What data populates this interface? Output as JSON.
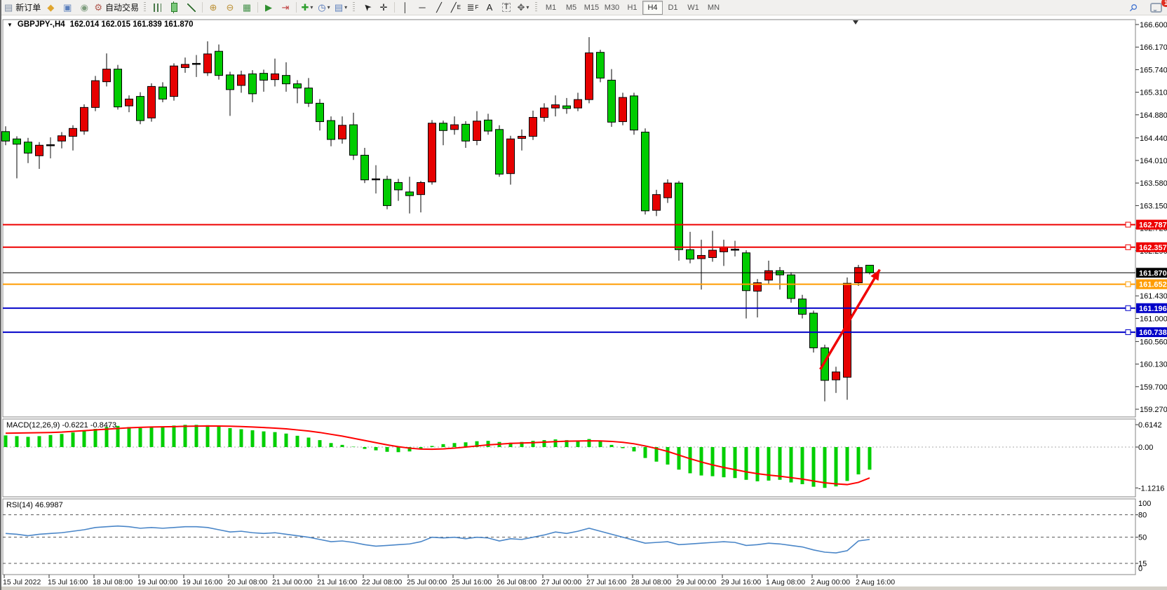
{
  "toolbar": {
    "new_order_label": "新订单",
    "auto_trading_label": "自动交易",
    "items": [
      {
        "t": "btn",
        "name": "new-order-button",
        "glyph": "▤",
        "color": "#7d8ca3",
        "label": "新订单"
      },
      {
        "t": "btn",
        "name": "market-watch-icon",
        "glyph": "◆",
        "color": "#dfa52f"
      },
      {
        "t": "btn",
        "name": "data-window-icon",
        "glyph": "▣",
        "color": "#5b7fbc"
      },
      {
        "t": "btn",
        "name": "signal-icon",
        "glyph": "◉",
        "color": "#7d9c7d"
      },
      {
        "t": "btn",
        "name": "auto-trading-button",
        "glyph": "⚙",
        "color": "#b05a50",
        "label": "自动交易"
      },
      {
        "t": "grip"
      },
      {
        "t": "btn",
        "name": "bar-chart-button",
        "cls": "icon-bars"
      },
      {
        "t": "btn",
        "name": "candlestick-chart-button",
        "cls": "icon-candle"
      },
      {
        "t": "btn",
        "name": "line-chart-button",
        "cls": "icon-linechart"
      },
      {
        "t": "sep"
      },
      {
        "t": "btn",
        "name": "zoom-in-button",
        "glyph": "⊕",
        "color": "#bb8f33"
      },
      {
        "t": "btn",
        "name": "zoom-out-button",
        "glyph": "⊖",
        "color": "#bb8f33"
      },
      {
        "t": "btn",
        "name": "tile-windows-button",
        "glyph": "▦",
        "color": "#47934d"
      },
      {
        "t": "sep"
      },
      {
        "t": "btn",
        "name": "auto-scroll-button",
        "glyph": "▶",
        "color": "#2f8f2f"
      },
      {
        "t": "btn",
        "name": "chart-shift-button",
        "glyph": "⇥",
        "color": "#c04040"
      },
      {
        "t": "sep"
      },
      {
        "t": "btn",
        "name": "indicators-button",
        "glyph": "✚",
        "color": "#2f9f2f",
        "caret": true
      },
      {
        "t": "btn",
        "name": "period-button",
        "glyph": "◷",
        "color": "#4a6fb5",
        "caret": true
      },
      {
        "t": "btn",
        "name": "templates-button",
        "glyph": "▤",
        "color": "#5b7fbc",
        "caret": true
      },
      {
        "t": "grip"
      },
      {
        "t": "btn",
        "name": "cursor-button",
        "glyph": "➤",
        "color": "#222",
        "gcls": "rot-ul"
      },
      {
        "t": "btn",
        "name": "crosshair-button",
        "glyph": "✛",
        "color": "#222"
      },
      {
        "t": "sep"
      },
      {
        "t": "btn",
        "name": "vertical-line-button",
        "glyph": "│",
        "color": "#222"
      },
      {
        "t": "btn",
        "name": "horizontal-line-button",
        "glyph": "─",
        "color": "#222"
      },
      {
        "t": "btn",
        "name": "trendline-button",
        "glyph": "╱",
        "color": "#222"
      },
      {
        "t": "btn",
        "name": "equidistant-channel-button",
        "glyph": "╱",
        "color": "#222",
        "sub": "E"
      },
      {
        "t": "btn",
        "name": "fibonacci-button",
        "glyph": "≣",
        "color": "#222",
        "sub": "F"
      },
      {
        "t": "btn",
        "name": "text-button",
        "glyph": "A",
        "color": "#222"
      },
      {
        "t": "btn",
        "name": "text-label-button",
        "glyph": "T",
        "color": "#222",
        "gcls": "boxed"
      },
      {
        "t": "btn",
        "name": "shapes-button",
        "glyph": "✥",
        "color": "#555",
        "caret": true
      },
      {
        "t": "grip"
      }
    ],
    "timeframes": [
      "M1",
      "M5",
      "M15",
      "M30",
      "H1",
      "H4",
      "D1",
      "W1",
      "MN"
    ],
    "active_timeframe": "H4",
    "search_glyph": "⚲",
    "notification_badge": "1"
  },
  "chart": {
    "title_symbol": "GBPJPY-,H4",
    "title_ohlc": "162.014 162.015 161.839 161.870",
    "dropdown_glyph": "▼",
    "price_ticks": [
      "166.600",
      "166.170",
      "165.740",
      "165.310",
      "164.880",
      "164.440",
      "164.010",
      "163.580",
      "163.150",
      "162.720",
      "162.290",
      "161.430",
      "161.000",
      "160.560",
      "160.130",
      "159.700",
      "159.270"
    ],
    "lines": [
      {
        "label": "162.787",
        "color": "#ee0000",
        "width": 2,
        "handle": true
      },
      {
        "label": "162.357",
        "color": "#ee0000",
        "width": 2,
        "handle": true
      },
      {
        "label": "161.870",
        "color": "#000000",
        "width": 1,
        "handle": false
      },
      {
        "label": "161.652",
        "color": "#ff9c00",
        "width": 2,
        "handle": true
      },
      {
        "label": "161.196",
        "color": "#0000c8",
        "width": 2,
        "handle": true
      },
      {
        "label": "160.738",
        "color": "#0000c8",
        "width": 2,
        "handle": true
      }
    ],
    "bull_color": "#e60000",
    "bear_color": "#00cc00",
    "doji_color": "#111111",
    "candles": [
      [
        164.56,
        164.66,
        164.3,
        164.38
      ],
      [
        164.42,
        164.47,
        163.67,
        164.32
      ],
      [
        164.36,
        164.44,
        163.96,
        164.15
      ],
      [
        164.1,
        164.36,
        163.85,
        164.3
      ],
      [
        164.29,
        164.45,
        164.05,
        164.31
      ],
      [
        164.38,
        164.55,
        164.24,
        164.48
      ],
      [
        164.47,
        164.68,
        164.2,
        164.62
      ],
      [
        164.57,
        165.08,
        164.5,
        165.02
      ],
      [
        165.02,
        165.62,
        164.95,
        165.53
      ],
      [
        165.51,
        166.05,
        165.42,
        165.75
      ],
      [
        165.75,
        165.83,
        164.98,
        165.03
      ],
      [
        165.05,
        165.25,
        164.93,
        165.18
      ],
      [
        165.23,
        165.31,
        164.7,
        164.77
      ],
      [
        164.82,
        165.48,
        164.75,
        165.42
      ],
      [
        165.41,
        165.5,
        165.12,
        165.18
      ],
      [
        165.23,
        165.86,
        165.15,
        165.81
      ],
      [
        165.78,
        165.97,
        165.68,
        165.84
      ],
      [
        165.85,
        166.02,
        165.6,
        165.86
      ],
      [
        165.68,
        166.28,
        165.62,
        166.04
      ],
      [
        166.09,
        166.22,
        165.55,
        165.63
      ],
      [
        165.64,
        165.7,
        164.86,
        165.36
      ],
      [
        165.44,
        165.72,
        165.3,
        165.64
      ],
      [
        165.66,
        165.73,
        165.12,
        165.28
      ],
      [
        165.67,
        165.74,
        165.32,
        165.54
      ],
      [
        165.55,
        165.95,
        165.42,
        165.66
      ],
      [
        165.63,
        165.88,
        165.32,
        165.47
      ],
      [
        165.47,
        165.54,
        165.1,
        165.39
      ],
      [
        165.39,
        165.58,
        165.03,
        165.1
      ],
      [
        165.1,
        165.18,
        164.58,
        164.75
      ],
      [
        164.77,
        164.85,
        164.28,
        164.41
      ],
      [
        164.42,
        164.85,
        164.33,
        164.68
      ],
      [
        164.69,
        164.92,
        164.02,
        164.11
      ],
      [
        164.11,
        164.25,
        163.58,
        163.64
      ],
      [
        163.64,
        163.92,
        163.38,
        163.66
      ],
      [
        163.65,
        163.72,
        163.08,
        163.15
      ],
      [
        163.59,
        163.66,
        163.24,
        163.45
      ],
      [
        163.41,
        163.7,
        163.0,
        163.34
      ],
      [
        163.36,
        163.62,
        163.02,
        163.59
      ],
      [
        163.6,
        164.78,
        163.55,
        164.72
      ],
      [
        164.72,
        164.77,
        164.3,
        164.58
      ],
      [
        164.6,
        164.85,
        164.5,
        164.69
      ],
      [
        164.7,
        164.76,
        164.25,
        164.38
      ],
      [
        164.39,
        164.95,
        164.3,
        164.76
      ],
      [
        164.78,
        164.9,
        164.5,
        164.57
      ],
      [
        164.6,
        164.68,
        163.7,
        163.75
      ],
      [
        163.76,
        164.48,
        163.55,
        164.42
      ],
      [
        164.43,
        164.6,
        164.2,
        164.47
      ],
      [
        164.47,
        164.96,
        164.4,
        164.83
      ],
      [
        164.83,
        165.1,
        164.75,
        165.01
      ],
      [
        165.01,
        165.25,
        164.85,
        165.07
      ],
      [
        165.05,
        165.2,
        164.9,
        165.0
      ],
      [
        165.01,
        165.3,
        164.95,
        165.17
      ],
      [
        165.17,
        166.36,
        165.1,
        166.06
      ],
      [
        166.07,
        166.12,
        165.5,
        165.58
      ],
      [
        165.54,
        165.75,
        164.65,
        164.74
      ],
      [
        164.75,
        165.3,
        164.68,
        165.21
      ],
      [
        165.24,
        165.3,
        164.5,
        164.59
      ],
      [
        164.55,
        164.62,
        162.98,
        163.05
      ],
      [
        163.06,
        163.45,
        162.95,
        163.36
      ],
      [
        163.3,
        163.65,
        163.2,
        163.58
      ],
      [
        163.58,
        163.62,
        162.1,
        162.31
      ],
      [
        162.31,
        162.65,
        162.05,
        162.13
      ],
      [
        162.14,
        162.5,
        161.55,
        162.2
      ],
      [
        162.16,
        162.67,
        162.08,
        162.3
      ],
      [
        162.27,
        162.5,
        162.0,
        162.36
      ],
      [
        162.32,
        162.48,
        162.18,
        162.3
      ],
      [
        162.25,
        162.3,
        161.0,
        161.53
      ],
      [
        161.52,
        161.75,
        161.02,
        161.68
      ],
      [
        161.73,
        162.1,
        161.65,
        161.91
      ],
      [
        161.91,
        161.98,
        161.55,
        161.83
      ],
      [
        161.83,
        161.88,
        161.3,
        161.38
      ],
      [
        161.37,
        161.45,
        161.0,
        161.08
      ],
      [
        161.1,
        161.15,
        160.35,
        160.44
      ],
      [
        160.44,
        160.5,
        159.42,
        159.82
      ],
      [
        159.83,
        160.08,
        159.58,
        159.98
      ],
      [
        159.88,
        161.78,
        159.45,
        161.67
      ],
      [
        161.68,
        162.02,
        161.62,
        161.97
      ],
      [
        162.014,
        162.015,
        161.839,
        161.87
      ]
    ],
    "arrow": {
      "bar_from": 72.6,
      "price_from": 160.03,
      "bar_to": 77.9,
      "price_to": 161.93,
      "color": "#f00000"
    },
    "shift_marker_bar": 75.75
  },
  "macd": {
    "label": "MACD(12,26,9)",
    "values": "-0.6221 -0.8473",
    "axis_labels": [
      "0.6142",
      "0.00",
      "-1.1216"
    ],
    "bar_color": "#00cf00",
    "signal_color": "#ff0000",
    "histogram": [
      0.32,
      0.3,
      0.28,
      0.3,
      0.33,
      0.36,
      0.4,
      0.45,
      0.5,
      0.55,
      0.58,
      0.55,
      0.52,
      0.54,
      0.56,
      0.59,
      0.61,
      0.61,
      0.6,
      0.57,
      0.52,
      0.49,
      0.46,
      0.43,
      0.41,
      0.37,
      0.31,
      0.26,
      0.19,
      0.11,
      0.06,
      0.01,
      -0.05,
      -0.09,
      -0.13,
      -0.14,
      -0.12,
      -0.05,
      0.03,
      0.08,
      0.11,
      0.13,
      0.16,
      0.17,
      0.14,
      0.12,
      0.14,
      0.17,
      0.19,
      0.21,
      0.19,
      0.18,
      0.22,
      0.16,
      0.06,
      -0.03,
      -0.12,
      -0.3,
      -0.4,
      -0.48,
      -0.62,
      -0.72,
      -0.78,
      -0.8,
      -0.83,
      -0.85,
      -0.9,
      -0.94,
      -0.92,
      -0.9,
      -0.97,
      -1.02,
      -1.09,
      -1.12,
      -1.08,
      -0.93,
      -0.75,
      -0.6221
    ],
    "signal": [
      0.38,
      0.385,
      0.39,
      0.395,
      0.4,
      0.41,
      0.43,
      0.45,
      0.47,
      0.49,
      0.51,
      0.53,
      0.54,
      0.55,
      0.555,
      0.56,
      0.57,
      0.575,
      0.58,
      0.578,
      0.572,
      0.562,
      0.55,
      0.535,
      0.52,
      0.5,
      0.47,
      0.44,
      0.4,
      0.35,
      0.3,
      0.24,
      0.18,
      0.12,
      0.06,
      0.01,
      -0.03,
      -0.055,
      -0.06,
      -0.05,
      -0.03,
      0.0,
      0.03,
      0.06,
      0.08,
      0.1,
      0.11,
      0.12,
      0.135,
      0.15,
      0.16,
      0.165,
      0.17,
      0.168,
      0.155,
      0.13,
      0.09,
      0.03,
      -0.04,
      -0.12,
      -0.22,
      -0.32,
      -0.41,
      -0.49,
      -0.56,
      -0.62,
      -0.68,
      -0.73,
      -0.77,
      -0.8,
      -0.84,
      -0.88,
      -0.93,
      -0.98,
      -1.01,
      -1.03,
      -0.97,
      -0.8473
    ]
  },
  "rsi": {
    "label": "RSI(14)",
    "value": "46.9987",
    "line_color": "#4a86c8",
    "levels": [
      {
        "label": "100",
        "v": 100,
        "dashed": false
      },
      {
        "label": "80",
        "v": 80,
        "dashed": true
      },
      {
        "label": "50",
        "v": 50,
        "dashed": true
      },
      {
        "label": "15",
        "v": 15,
        "dashed": true
      },
      {
        "label": "0",
        "v": 0,
        "dashed": false
      }
    ],
    "values": [
      55,
      54,
      52,
      54,
      55,
      56,
      58,
      60,
      63,
      64,
      65,
      64,
      62,
      63,
      62,
      63,
      64,
      64,
      63,
      60,
      57,
      58,
      56,
      55,
      56,
      54,
      52,
      50,
      47,
      44,
      45,
      43,
      40,
      38,
      39,
      40,
      41,
      44,
      50,
      49,
      50,
      48,
      50,
      49,
      45,
      48,
      47,
      50,
      53,
      57,
      55,
      58,
      62,
      58,
      54,
      50,
      46,
      42,
      43,
      44,
      40,
      41,
      42,
      43,
      44,
      43,
      39,
      40,
      42,
      41,
      39,
      37,
      33,
      30,
      29,
      32,
      45,
      46.9987
    ]
  },
  "time_axis": {
    "labels": [
      "15 Jul 2022",
      "15 Jul 16:00",
      "18 Jul 08:00",
      "19 Jul 00:00",
      "19 Jul 16:00",
      "20 Jul 08:00",
      "21 Jul 00:00",
      "21 Jul 16:00",
      "22 Jul 08:00",
      "25 Jul 00:00",
      "25 Jul 16:00",
      "26 Jul 08:00",
      "27 Jul 00:00",
      "27 Jul 16:00",
      "28 Jul 08:00",
      "29 Jul 00:00",
      "29 Jul 16:00",
      "1 Aug 08:00",
      "2 Aug 00:00",
      "2 Aug 16:00"
    ]
  }
}
